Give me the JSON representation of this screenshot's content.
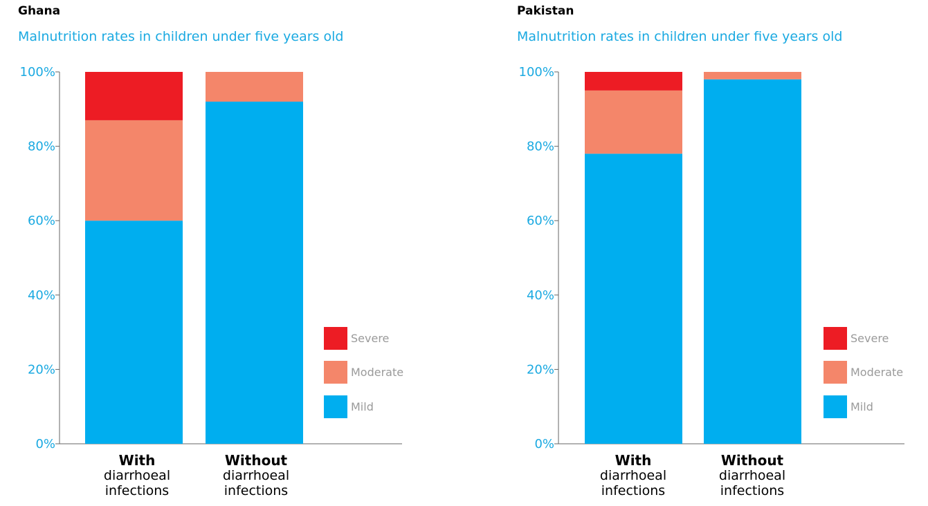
{
  "colors": {
    "severe": "#ed1c24",
    "moderate": "#f4866a",
    "mild": "#00aeef",
    "axis": "#666666",
    "tick_text": "#1aa9e1"
  },
  "chart_data": [
    {
      "type": "bar",
      "stacked": true,
      "title": "Ghana",
      "subtitle": "Malnutrition rates in children under five years old",
      "categories": [
        {
          "bold": "With",
          "rest": "diarrhoeal infections"
        },
        {
          "bold": "Without",
          "rest": "diarrhoeal infections"
        }
      ],
      "series": [
        {
          "name": "Mild",
          "color": "#00aeef",
          "values": [
            60,
            92
          ]
        },
        {
          "name": "Moderate",
          "color": "#f4866a",
          "values": [
            27,
            8
          ]
        },
        {
          "name": "Severe",
          "color": "#ed1c24",
          "values": [
            13,
            0
          ]
        }
      ],
      "y_ticks": [
        "0%",
        "20%",
        "40%",
        "60%",
        "80%",
        "100%"
      ],
      "ylim": [
        0,
        100
      ],
      "legend": [
        "Severe",
        "Moderate",
        "Mild"
      ],
      "legend_position": "right"
    },
    {
      "type": "bar",
      "stacked": true,
      "title": "Pakistan",
      "subtitle": "Malnutrition rates in children under five years old",
      "categories": [
        {
          "bold": "With",
          "rest": "diarrhoeal infections"
        },
        {
          "bold": "Without",
          "rest": "diarrhoeal infections"
        }
      ],
      "series": [
        {
          "name": "Mild",
          "color": "#00aeef",
          "values": [
            78,
            98
          ]
        },
        {
          "name": "Moderate",
          "color": "#f4866a",
          "values": [
            17,
            2
          ]
        },
        {
          "name": "Severe",
          "color": "#ed1c24",
          "values": [
            5,
            0
          ]
        }
      ],
      "y_ticks": [
        "0%",
        "20%",
        "40%",
        "60%",
        "80%",
        "100%"
      ],
      "ylim": [
        0,
        100
      ],
      "legend": [
        "Severe",
        "Moderate",
        "Mild"
      ],
      "legend_position": "right"
    }
  ]
}
